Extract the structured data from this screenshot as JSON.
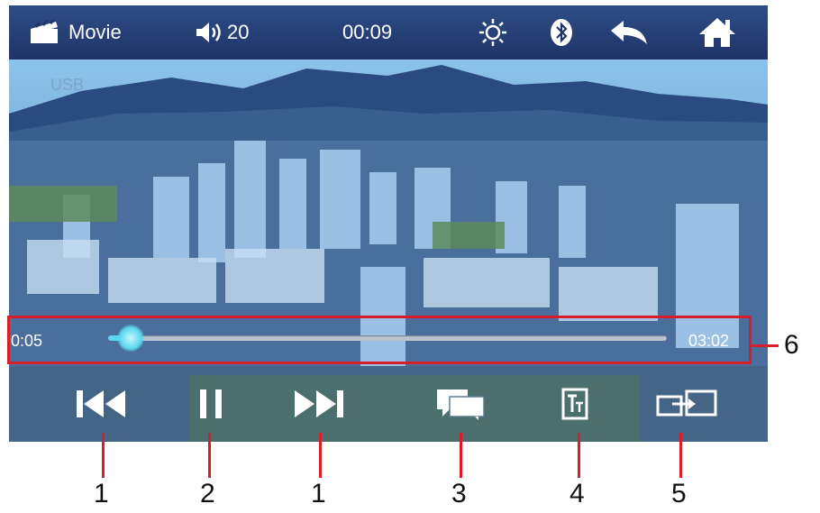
{
  "status_bar": {
    "source_icon": "clapperboard-icon",
    "mode_label": "Movie",
    "volume_icon": "speaker-icon",
    "volume_value": "20",
    "clock": "00:09",
    "brightness_icon": "brightness-icon",
    "bluetooth_icon": "bluetooth-icon",
    "back_icon": "back-arrow-icon",
    "home_icon": "home-icon"
  },
  "source": {
    "label": "USB"
  },
  "playback": {
    "elapsed": "0:05",
    "duration": "03:02",
    "progress_fraction": 0.04
  },
  "controls": {
    "previous_icon": "previous-track-icon",
    "pause_icon": "pause-icon",
    "next_icon": "next-track-icon",
    "chat_icon": "subtitle-chat-icon",
    "text_icon": "text-size-icon",
    "switch_icon": "screen-switch-icon"
  },
  "callouts": {
    "prev": "1",
    "pause": "2",
    "next": "1",
    "subtitle": "3",
    "text": "4",
    "switch": "5",
    "progress": "6"
  },
  "colors": {
    "status_bar": "#1f3468",
    "callout_red": "#d81e2a",
    "progress_fill": "#5ad7f0"
  }
}
